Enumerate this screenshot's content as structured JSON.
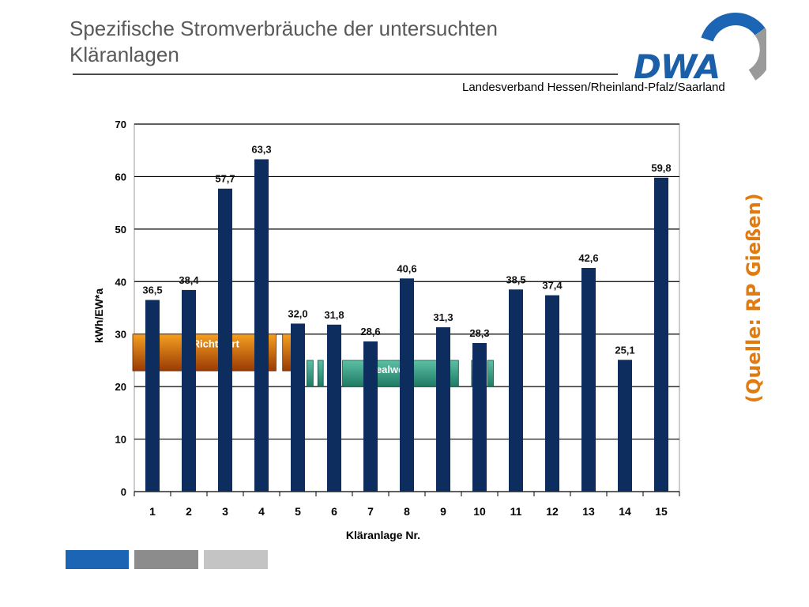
{
  "header": {
    "title": "Spezifische Stromverbräuche der untersuchten Kläranlagen",
    "subtitle": "Landesverband Hessen/Rheinland-Pfalz/Saarland",
    "logo_text": "DWA"
  },
  "source_note": "(Quelle: RP Gießen)",
  "colors": {
    "bar": "#0c2d5e",
    "richtwert": "#c85f08",
    "idealwert": "#2e9a80",
    "accent_source": "#e07b10",
    "brand_blue": "#1c64b4"
  },
  "chart_data": {
    "type": "bar",
    "xlabel": "Kläranlage Nr.",
    "ylabel": "kWh/EW*a",
    "ylim": [
      0,
      70
    ],
    "yticks": [
      0,
      10,
      20,
      30,
      40,
      50,
      60,
      70
    ],
    "grid": true,
    "categories": [
      "1",
      "2",
      "3",
      "4",
      "5",
      "6",
      "7",
      "8",
      "9",
      "10",
      "11",
      "12",
      "13",
      "14",
      "15"
    ],
    "values": [
      36.5,
      38.4,
      57.7,
      63.3,
      32.0,
      31.8,
      28.6,
      40.6,
      31.3,
      28.3,
      38.5,
      37.4,
      42.6,
      25.1,
      59.8
    ],
    "value_labels": [
      "36,5",
      "38,4",
      "57,7",
      "63,3",
      "32,0",
      "31,8",
      "28,6",
      "40,6",
      "31,3",
      "28,3",
      "38,5",
      "37,4",
      "42,6",
      "25,1",
      "59,8"
    ],
    "bands": [
      {
        "label": "Richtwert",
        "from": 23,
        "to": 30
      },
      {
        "label": "Idealwert",
        "from": 20,
        "to": 25
      }
    ]
  }
}
